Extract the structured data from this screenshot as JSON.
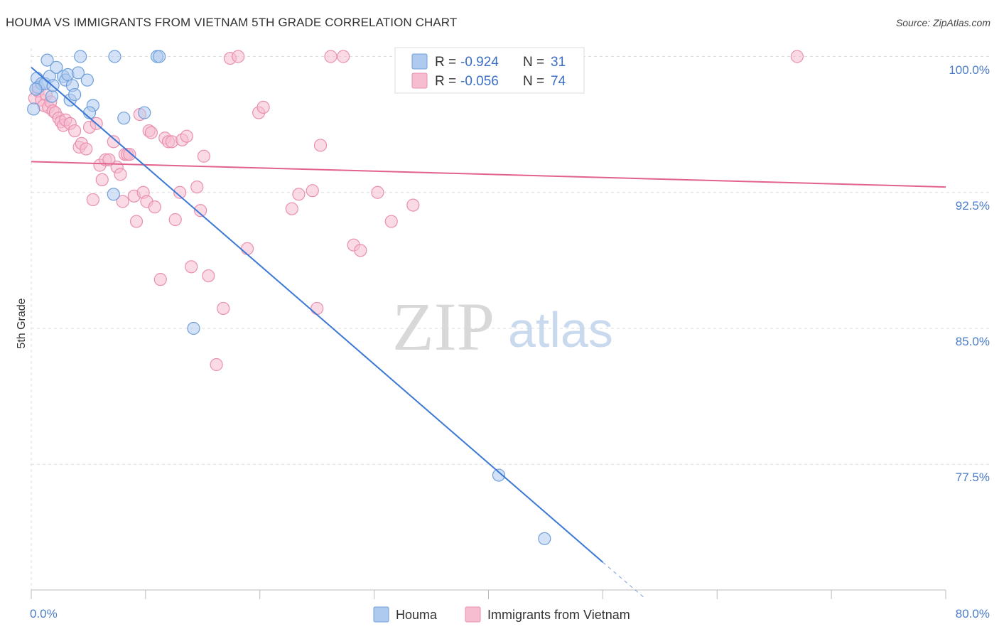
{
  "header": {
    "title": "HOUMA VS IMMIGRANTS FROM VIETNAM 5TH GRADE CORRELATION CHART",
    "source": "Source: ZipAtlas.com"
  },
  "watermark": {
    "zip": "ZIP",
    "atlas": "atlas"
  },
  "legend_top": {
    "houma": {
      "r_label": "R = ",
      "r_value": "-0.924",
      "n_label": "N = ",
      "n_value": "31"
    },
    "vietnam": {
      "r_label": "R = ",
      "r_value": "-0.056",
      "n_label": "N = ",
      "n_value": "74"
    }
  },
  "legend_bottom": {
    "houma": "Houma",
    "vietnam": "Immigrants from Vietnam"
  },
  "colors": {
    "houma_fill": "#aecbef",
    "houma_stroke": "#6f9fdb",
    "houma_line": "#3a78d4",
    "vietnam_fill": "#f6bcd0",
    "vietnam_stroke": "#e98fb0",
    "vietnam_line": "#e2628d",
    "grid": "#dddddd",
    "tick_text": "#4a7cc7"
  },
  "chart_data": {
    "type": "scatter",
    "title": "HOUMA VS IMMIGRANTS FROM VIETNAM 5TH GRADE CORRELATION CHART",
    "xlabel": "",
    "ylabel": "5th Grade",
    "xlim": [
      0,
      80
    ],
    "ylim": [
      70.4,
      100.6
    ],
    "x_tick_labels": [
      "0.0%",
      "80.0%"
    ],
    "y_ticks": [
      100.0,
      92.5,
      85.0,
      77.5
    ],
    "y_tick_labels": [
      "100.0%",
      "92.5%",
      "85.0%",
      "77.5%"
    ],
    "grid": true,
    "legend_position": "top-center",
    "series": [
      {
        "name": "Houma",
        "r": -0.924,
        "n": 31,
        "trend": {
          "x": [
            0.0,
            50.0
          ],
          "y": [
            99.4,
            72.1
          ],
          "dashed_x": [
            50.0,
            53.7
          ],
          "dashed_y": [
            72.1,
            70.1
          ]
        },
        "points": [
          [
            0.2,
            97.1
          ],
          [
            0.5,
            98.8
          ],
          [
            0.6,
            98.3
          ],
          [
            0.9,
            98.5
          ],
          [
            1.2,
            98.5
          ],
          [
            1.4,
            99.8
          ],
          [
            1.6,
            98.9
          ],
          [
            1.8,
            97.8
          ],
          [
            1.9,
            98.4
          ],
          [
            2.2,
            99.4
          ],
          [
            2.8,
            98.9
          ],
          [
            3.0,
            98.7
          ],
          [
            3.2,
            99.0
          ],
          [
            3.4,
            97.6
          ],
          [
            3.6,
            98.4
          ],
          [
            3.8,
            97.9
          ],
          [
            4.1,
            99.1
          ],
          [
            4.3,
            100.0
          ],
          [
            4.9,
            98.7
          ],
          [
            5.4,
            97.3
          ],
          [
            5.1,
            96.9
          ],
          [
            7.3,
            100.0
          ],
          [
            8.1,
            96.6
          ],
          [
            7.2,
            92.4
          ],
          [
            9.9,
            96.9
          ],
          [
            11.0,
            100.0
          ],
          [
            11.2,
            100.0
          ],
          [
            14.2,
            85.0
          ],
          [
            40.9,
            76.9
          ],
          [
            44.9,
            73.4
          ],
          [
            0.4,
            98.2
          ]
        ]
      },
      {
        "name": "Immigrants from Vietnam",
        "r": -0.056,
        "n": 74,
        "trend": {
          "x": [
            0.0,
            80.0
          ],
          "y": [
            94.2,
            92.8
          ]
        },
        "points": [
          [
            0.3,
            97.7
          ],
          [
            0.6,
            98.1
          ],
          [
            0.9,
            97.6
          ],
          [
            1.1,
            97.3
          ],
          [
            1.3,
            97.9
          ],
          [
            1.5,
            97.2
          ],
          [
            1.7,
            97.5
          ],
          [
            1.9,
            97.0
          ],
          [
            2.1,
            96.9
          ],
          [
            2.4,
            96.6
          ],
          [
            2.6,
            96.4
          ],
          [
            2.8,
            96.2
          ],
          [
            3.0,
            96.5
          ],
          [
            3.4,
            96.3
          ],
          [
            3.8,
            95.9
          ],
          [
            4.2,
            95.0
          ],
          [
            4.4,
            95.2
          ],
          [
            4.8,
            94.9
          ],
          [
            5.1,
            96.1
          ],
          [
            5.4,
            92.1
          ],
          [
            5.7,
            96.3
          ],
          [
            6.2,
            93.2
          ],
          [
            6.0,
            94.0
          ],
          [
            6.5,
            94.3
          ],
          [
            6.8,
            94.3
          ],
          [
            7.2,
            95.3
          ],
          [
            7.5,
            93.9
          ],
          [
            7.8,
            93.5
          ],
          [
            8.0,
            92.0
          ],
          [
            8.2,
            94.6
          ],
          [
            8.4,
            94.6
          ],
          [
            8.6,
            94.6
          ],
          [
            9.0,
            92.3
          ],
          [
            9.2,
            90.9
          ],
          [
            9.5,
            96.8
          ],
          [
            9.8,
            92.5
          ],
          [
            10.1,
            92.0
          ],
          [
            10.3,
            95.9
          ],
          [
            10.5,
            95.8
          ],
          [
            10.8,
            91.7
          ],
          [
            11.3,
            87.7
          ],
          [
            11.7,
            95.5
          ],
          [
            12.0,
            95.3
          ],
          [
            12.3,
            95.3
          ],
          [
            12.6,
            91.0
          ],
          [
            13.0,
            92.5
          ],
          [
            13.2,
            95.4
          ],
          [
            13.6,
            95.6
          ],
          [
            14.0,
            88.4
          ],
          [
            14.5,
            92.8
          ],
          [
            14.8,
            91.5
          ],
          [
            15.1,
            94.5
          ],
          [
            15.5,
            87.9
          ],
          [
            16.2,
            83.0
          ],
          [
            16.8,
            86.1
          ],
          [
            17.4,
            99.9
          ],
          [
            18.1,
            100.0
          ],
          [
            18.9,
            89.4
          ],
          [
            19.9,
            96.9
          ],
          [
            20.3,
            97.2
          ],
          [
            22.8,
            91.6
          ],
          [
            23.4,
            92.4
          ],
          [
            24.6,
            92.6
          ],
          [
            25.0,
            86.1
          ],
          [
            25.3,
            95.1
          ],
          [
            26.2,
            100.0
          ],
          [
            27.3,
            100.0
          ],
          [
            28.2,
            89.6
          ],
          [
            28.8,
            89.3
          ],
          [
            30.3,
            92.5
          ],
          [
            31.5,
            90.9
          ],
          [
            33.4,
            91.8
          ],
          [
            43.0,
            100.0
          ],
          [
            67.0,
            100.0
          ]
        ]
      }
    ]
  }
}
